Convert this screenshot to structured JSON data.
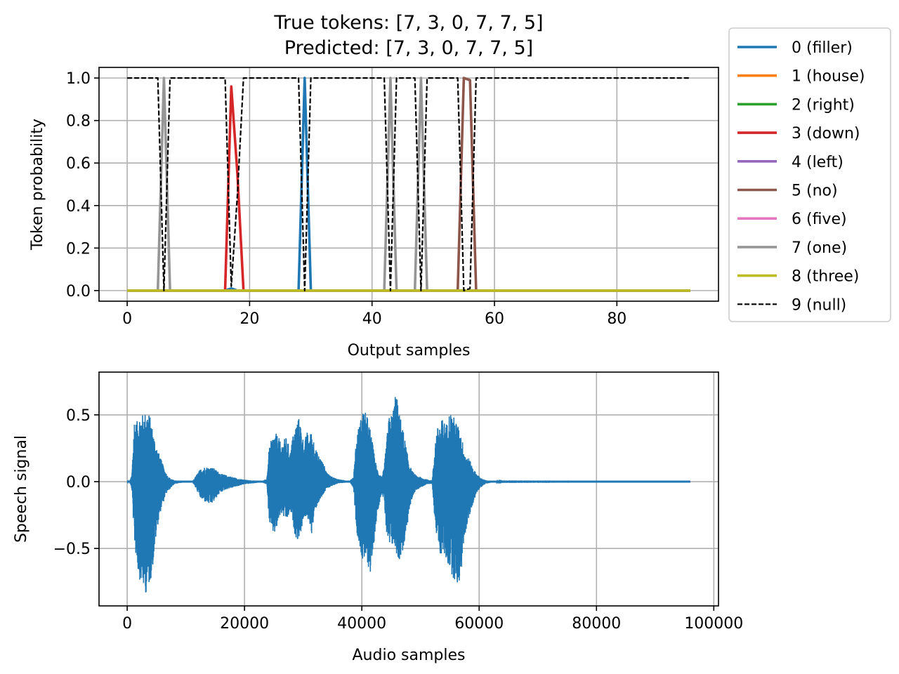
{
  "chart_data": [
    {
      "type": "line",
      "title": "True tokens: [7, 3, 0, 7, 7, 5]",
      "subtitle": "Predicted: [7, 3, 0, 7, 7, 5]",
      "xlabel": "Output samples",
      "ylabel": "Token probability",
      "xlim": [
        -4.6,
        96.6
      ],
      "ylim": [
        -0.05,
        1.05
      ],
      "xticks": [
        0,
        20,
        40,
        60,
        80
      ],
      "yticks": [
        0.0,
        0.2,
        0.4,
        0.6,
        0.8,
        1.0
      ],
      "xtick_labels": [
        "0",
        "20",
        "40",
        "60",
        "80"
      ],
      "ytick_labels": [
        "0.0",
        "0.2",
        "0.4",
        "0.6",
        "0.8",
        "1.0"
      ],
      "grid": true,
      "legend": "outside-right",
      "x_range": [
        0,
        92
      ],
      "series": [
        {
          "name": "0 (filler)",
          "color": "#1f77b4",
          "dash": false,
          "points": [
            [
              0,
              0
            ],
            [
              16,
              0
            ],
            [
              17,
              0.01
            ],
            [
              18,
              0
            ],
            [
              28,
              0
            ],
            [
              29,
              1.0
            ],
            [
              30,
              0
            ],
            [
              92,
              0
            ]
          ]
        },
        {
          "name": "1 (house)",
          "color": "#ff7f0e",
          "dash": false,
          "points": [
            [
              0,
              0
            ],
            [
              92,
              0
            ]
          ]
        },
        {
          "name": "2 (right)",
          "color": "#2ca02c",
          "dash": false,
          "points": [
            [
              0,
              0
            ],
            [
              92,
              0
            ]
          ]
        },
        {
          "name": "3 (down)",
          "color": "#d62728",
          "dash": false,
          "points": [
            [
              0,
              0
            ],
            [
              16,
              0
            ],
            [
              17,
              0.96
            ],
            [
              18,
              0.55
            ],
            [
              19,
              0
            ],
            [
              92,
              0
            ]
          ]
        },
        {
          "name": "4 (left)",
          "color": "#9467bd",
          "dash": false,
          "points": [
            [
              0,
              0
            ],
            [
              92,
              0
            ]
          ]
        },
        {
          "name": "5 (no)",
          "color": "#8c564b",
          "dash": false,
          "points": [
            [
              0,
              0
            ],
            [
              54,
              0
            ],
            [
              55,
              1.0
            ],
            [
              56,
              0.99
            ],
            [
              57,
              0
            ],
            [
              92,
              0
            ]
          ]
        },
        {
          "name": "6 (five)",
          "color": "#e377c2",
          "dash": false,
          "points": [
            [
              0,
              0
            ],
            [
              92,
              0
            ]
          ]
        },
        {
          "name": "7 (one)",
          "color": "#969696",
          "dash": false,
          "points": [
            [
              0,
              0
            ],
            [
              5,
              0
            ],
            [
              6,
              1.0
            ],
            [
              7,
              0
            ],
            [
              42,
              0
            ],
            [
              43,
              1.0
            ],
            [
              44,
              0
            ],
            [
              47,
              0
            ],
            [
              48,
              1.0
            ],
            [
              49,
              0
            ],
            [
              92,
              0
            ]
          ]
        },
        {
          "name": "8 (three)",
          "color": "#bcbd22",
          "dash": false,
          "points": [
            [
              0,
              0
            ],
            [
              92,
              0
            ]
          ]
        },
        {
          "name": "9 (null)",
          "color": "#000000",
          "dash": true,
          "points": [
            [
              0,
              1.0
            ],
            [
              5,
              1.0
            ],
            [
              6,
              0
            ],
            [
              7,
              1.0
            ],
            [
              16,
              1.0
            ],
            [
              17,
              0.02
            ],
            [
              18,
              0.45
            ],
            [
              19,
              1.0
            ],
            [
              28,
              1.0
            ],
            [
              29,
              0
            ],
            [
              30,
              1.0
            ],
            [
              42,
              1.0
            ],
            [
              43,
              0
            ],
            [
              44,
              1.0
            ],
            [
              47,
              1.0
            ],
            [
              48,
              0
            ],
            [
              49,
              1.0
            ],
            [
              54,
              1.0
            ],
            [
              55,
              0
            ],
            [
              56,
              0.01
            ],
            [
              57,
              1.0
            ],
            [
              92,
              1.0
            ]
          ]
        }
      ]
    },
    {
      "type": "line",
      "xlabel": "Audio samples",
      "ylabel": "Speech signal",
      "xlim": [
        -4800,
        100800
      ],
      "ylim": [
        -0.93,
        0.82
      ],
      "xticks": [
        0,
        20000,
        40000,
        60000,
        80000,
        100000
      ],
      "yticks": [
        -0.5,
        0.0,
        0.5
      ],
      "xtick_labels": [
        "0",
        "20000",
        "40000",
        "60000",
        "80000",
        "100000"
      ],
      "ytick_labels": [
        "−0.5",
        "0.0",
        "0.5"
      ],
      "grid": true,
      "color": "#1f77b4",
      "x_range": [
        0,
        96000
      ],
      "envelope": [
        [
          0,
          0.0,
          0.0
        ],
        [
          400,
          0.004,
          -0.004
        ],
        [
          800,
          0.05,
          -0.06
        ],
        [
          1200,
          0.48,
          -0.45
        ],
        [
          1600,
          0.44,
          -0.6
        ],
        [
          2000,
          0.5,
          -0.72
        ],
        [
          2400,
          0.51,
          -0.76
        ],
        [
          2800,
          0.5,
          -0.81
        ],
        [
          3200,
          0.53,
          -0.84
        ],
        [
          3600,
          0.53,
          -0.8
        ],
        [
          4000,
          0.47,
          -0.74
        ],
        [
          4400,
          0.38,
          -0.63
        ],
        [
          4800,
          0.3,
          -0.46
        ],
        [
          5200,
          0.24,
          -0.33
        ],
        [
          5600,
          0.19,
          -0.24
        ],
        [
          6000,
          0.14,
          -0.18
        ],
        [
          6400,
          0.09,
          -0.12
        ],
        [
          6800,
          0.05,
          -0.08
        ],
        [
          7200,
          0.03,
          -0.06
        ],
        [
          7600,
          0.02,
          -0.04
        ],
        [
          8000,
          0.01,
          -0.02
        ],
        [
          8800,
          0.008,
          -0.012
        ],
        [
          9600,
          0.005,
          -0.006
        ],
        [
          10400,
          0.004,
          -0.004
        ],
        [
          11200,
          0.006,
          -0.008
        ],
        [
          11800,
          0.05,
          -0.06
        ],
        [
          12400,
          0.09,
          -0.12
        ],
        [
          13000,
          0.11,
          -0.15
        ],
        [
          13600,
          0.11,
          -0.16
        ],
        [
          14200,
          0.11,
          -0.18
        ],
        [
          14800,
          0.1,
          -0.15
        ],
        [
          15400,
          0.08,
          -0.11
        ],
        [
          16000,
          0.06,
          -0.08
        ],
        [
          16800,
          0.05,
          -0.06
        ],
        [
          17600,
          0.04,
          -0.05
        ],
        [
          18400,
          0.03,
          -0.04
        ],
        [
          19200,
          0.02,
          -0.03
        ],
        [
          20000,
          0.015,
          -0.02
        ],
        [
          21000,
          0.01,
          -0.015
        ],
        [
          22000,
          0.008,
          -0.01
        ],
        [
          23000,
          0.005,
          -0.006
        ],
        [
          23800,
          0.02,
          -0.02
        ],
        [
          24200,
          0.25,
          -0.3
        ],
        [
          24600,
          0.32,
          -0.38
        ],
        [
          25000,
          0.36,
          -0.4
        ],
        [
          25400,
          0.36,
          -0.38
        ],
        [
          25800,
          0.34,
          -0.3
        ],
        [
          26200,
          0.28,
          -0.24
        ],
        [
          26600,
          0.3,
          -0.26
        ],
        [
          27000,
          0.34,
          -0.3
        ],
        [
          27400,
          0.3,
          -0.28
        ],
        [
          27800,
          0.22,
          -0.22
        ],
        [
          28200,
          0.34,
          -0.3
        ],
        [
          28600,
          0.4,
          -0.4
        ],
        [
          29000,
          0.47,
          -0.44
        ],
        [
          29400,
          0.48,
          -0.42
        ],
        [
          29800,
          0.36,
          -0.34
        ],
        [
          30200,
          0.28,
          -0.26
        ],
        [
          30600,
          0.38,
          -0.3
        ],
        [
          31000,
          0.34,
          -0.28
        ],
        [
          31400,
          0.38,
          -0.4
        ],
        [
          31800,
          0.32,
          -0.3
        ],
        [
          32200,
          0.24,
          -0.2
        ],
        [
          32600,
          0.2,
          -0.16
        ],
        [
          33000,
          0.18,
          -0.14
        ],
        [
          33400,
          0.14,
          -0.1
        ],
        [
          33800,
          0.1,
          -0.07
        ],
        [
          34200,
          0.06,
          -0.05
        ],
        [
          34800,
          0.04,
          -0.035
        ],
        [
          35600,
          0.025,
          -0.02
        ],
        [
          36400,
          0.015,
          -0.012
        ],
        [
          37200,
          0.01,
          -0.008
        ],
        [
          38000,
          0.008,
          -0.006
        ],
        [
          38600,
          0.04,
          -0.05
        ],
        [
          39000,
          0.3,
          -0.32
        ],
        [
          39400,
          0.4,
          -0.46
        ],
        [
          39800,
          0.47,
          -0.52
        ],
        [
          40200,
          0.54,
          -0.64
        ],
        [
          40600,
          0.52,
          -0.6
        ],
        [
          41000,
          0.48,
          -0.62
        ],
        [
          41400,
          0.4,
          -0.7
        ],
        [
          41800,
          0.3,
          -0.6
        ],
        [
          42200,
          0.18,
          -0.4
        ],
        [
          42600,
          0.1,
          -0.25
        ],
        [
          43000,
          0.06,
          -0.16
        ],
        [
          43400,
          0.04,
          -0.08
        ],
        [
          43800,
          0.1,
          -0.15
        ],
        [
          44200,
          0.3,
          -0.4
        ],
        [
          44600,
          0.48,
          -0.52
        ],
        [
          45000,
          0.5,
          -0.5
        ],
        [
          45400,
          0.56,
          -0.48
        ],
        [
          45800,
          0.72,
          -0.52
        ],
        [
          46200,
          0.54,
          -0.6
        ],
        [
          46600,
          0.48,
          -0.58
        ],
        [
          47000,
          0.4,
          -0.52
        ],
        [
          47400,
          0.3,
          -0.46
        ],
        [
          47800,
          0.2,
          -0.32
        ],
        [
          48200,
          0.12,
          -0.2
        ],
        [
          48600,
          0.08,
          -0.12
        ],
        [
          49000,
          0.06,
          -0.08
        ],
        [
          49400,
          0.04,
          -0.06
        ],
        [
          49800,
          0.04,
          -0.05
        ],
        [
          50200,
          0.03,
          -0.04
        ],
        [
          50800,
          0.02,
          -0.03
        ],
        [
          51400,
          0.015,
          -0.02
        ],
        [
          52000,
          0.01,
          -0.015
        ],
        [
          52600,
          0.35,
          -0.38
        ],
        [
          53000,
          0.42,
          -0.48
        ],
        [
          53400,
          0.44,
          -0.56
        ],
        [
          53800,
          0.48,
          -0.52
        ],
        [
          54200,
          0.44,
          -0.58
        ],
        [
          54600,
          0.44,
          -0.62
        ],
        [
          55000,
          0.54,
          -0.66
        ],
        [
          55400,
          0.5,
          -0.7
        ],
        [
          55800,
          0.48,
          -0.75
        ],
        [
          56200,
          0.44,
          -0.78
        ],
        [
          56600,
          0.4,
          -0.76
        ],
        [
          57000,
          0.34,
          -0.66
        ],
        [
          57400,
          0.25,
          -0.44
        ],
        [
          57800,
          0.2,
          -0.36
        ],
        [
          58200,
          0.18,
          -0.3
        ],
        [
          58600,
          0.14,
          -0.22
        ],
        [
          59000,
          0.1,
          -0.16
        ],
        [
          59400,
          0.07,
          -0.1
        ],
        [
          59800,
          0.05,
          -0.07
        ],
        [
          60200,
          0.03,
          -0.05
        ],
        [
          60600,
          0.02,
          -0.03
        ],
        [
          61200,
          0.01,
          -0.015
        ],
        [
          62000,
          0.005,
          -0.008
        ],
        [
          63000,
          0.002,
          -0.003
        ],
        [
          64000,
          0.001,
          -0.001
        ],
        [
          96000,
          0.0,
          0.0
        ]
      ]
    }
  ]
}
